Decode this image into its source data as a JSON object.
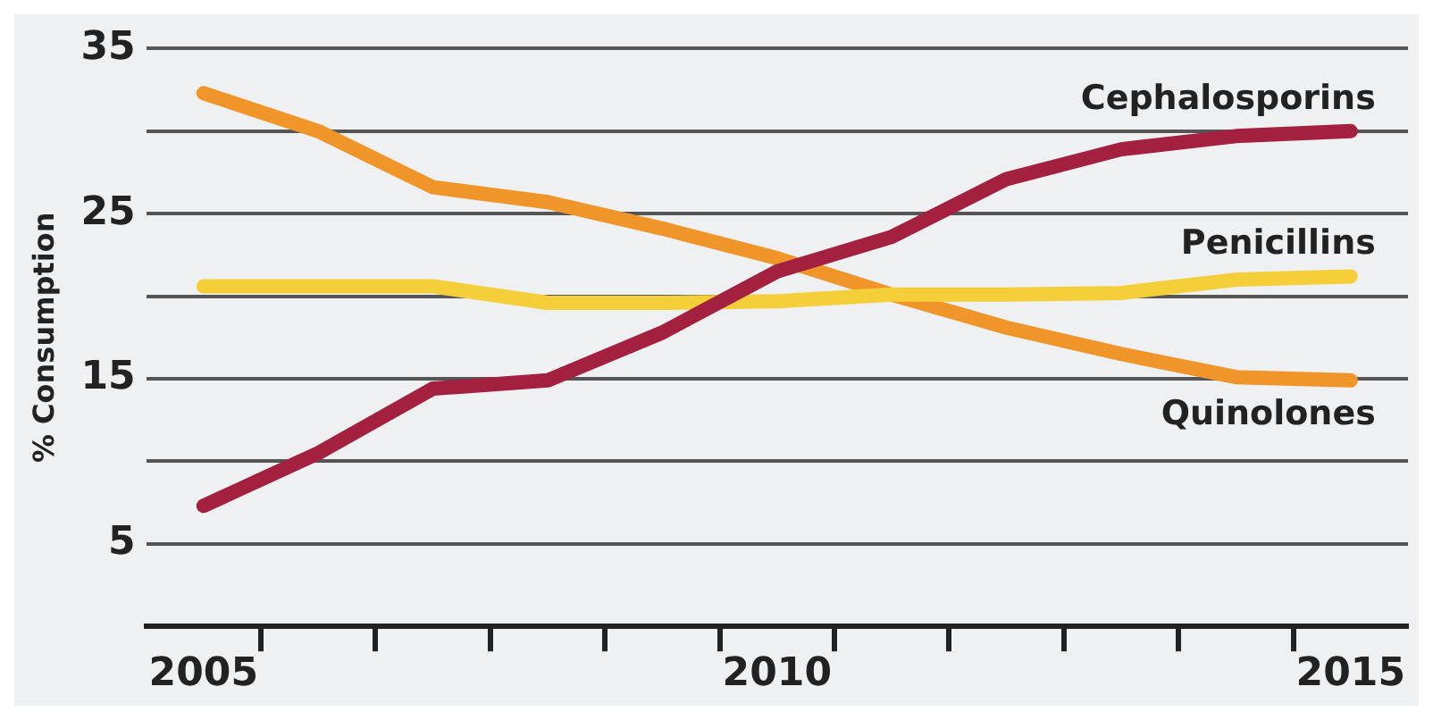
{
  "chart_data": {
    "type": "line",
    "ylabel": "% Consumption",
    "x": [
      2005,
      2006,
      2007,
      2008,
      2009,
      2010,
      2011,
      2012,
      2013,
      2014,
      2015
    ],
    "series": [
      {
        "name": "Cephalosporins",
        "color": "#a3213f",
        "values": [
          7.3,
          10.5,
          14.4,
          14.9,
          17.8,
          21.5,
          23.6,
          27.1,
          28.9,
          29.7,
          30.0
        ]
      },
      {
        "name": "Penicillins",
        "color": "#f5cf3a",
        "values": [
          20.6,
          20.6,
          20.6,
          19.6,
          19.6,
          19.7,
          20.1,
          20.1,
          20.2,
          21.0,
          21.2
        ]
      },
      {
        "name": "Quinolones",
        "color": "#f0952a",
        "values": [
          32.3,
          30.0,
          26.6,
          25.7,
          24.1,
          22.3,
          20.1,
          18.1,
          16.5,
          15.1,
          14.9
        ]
      }
    ],
    "xlim": [
      2004.5,
      2015.5
    ],
    "xticks": [
      {
        "value": 2005,
        "label": "2005"
      },
      {
        "value": 2005.5,
        "label": null
      },
      {
        "value": 2006.5,
        "label": null
      },
      {
        "value": 2007.5,
        "label": null
      },
      {
        "value": 2008.5,
        "label": null
      },
      {
        "value": 2009.5,
        "label": null
      },
      {
        "value": 2010,
        "label": "2010"
      },
      {
        "value": 2010.5,
        "label": null
      },
      {
        "value": 2011.5,
        "label": null
      },
      {
        "value": 2012.5,
        "label": null
      },
      {
        "value": 2013.5,
        "label": null
      },
      {
        "value": 2014.5,
        "label": null
      },
      {
        "value": 2015,
        "label": "2015"
      }
    ],
    "ylim": [
      0,
      35
    ],
    "yticks": [
      5,
      {
        "value": 10,
        "label": null
      },
      15,
      {
        "value": 20,
        "label": null
      },
      25,
      {
        "value": 30,
        "label": null
      },
      35
    ],
    "grid": "y",
    "legend": false,
    "marker": "none",
    "line_style": "solid"
  }
}
